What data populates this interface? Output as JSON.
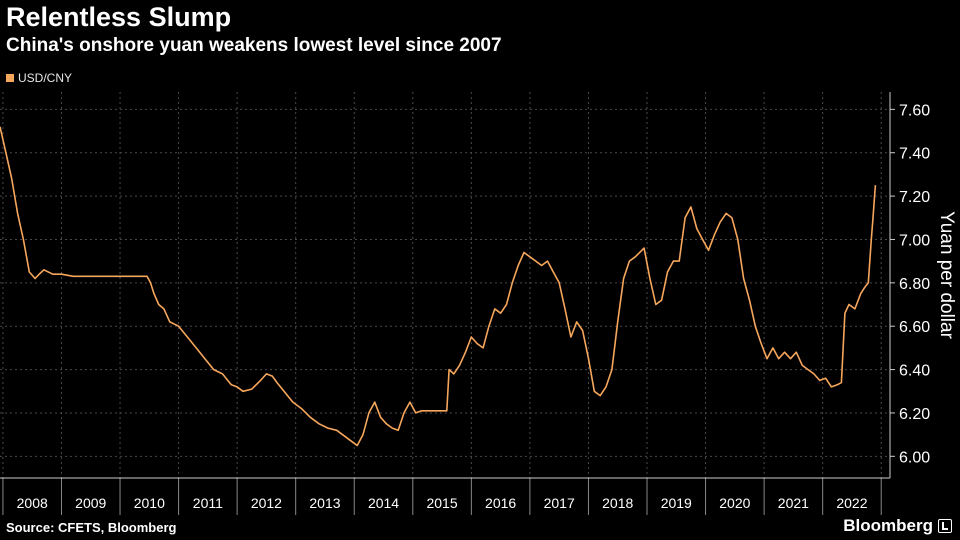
{
  "header": {
    "title": "Relentless Slump",
    "subtitle": "China's onshore yuan weakens lowest level since 2007"
  },
  "footer": {
    "source": "Source: CFETS, Bloomberg",
    "brand": "Bloomberg"
  },
  "colors": {
    "background": "#000000",
    "series": "#f7a75c",
    "grid": "#4a4a4a",
    "axis": "#cccccc"
  },
  "chart_data": {
    "type": "line",
    "title": "Relentless Slump",
    "subtitle": "China's onshore yuan weakens lowest level since 2007",
    "xlabel": "",
    "ylabel": "Yuan per dollar",
    "xlim": [
      2007.95,
      2023.15
    ],
    "ylim": [
      5.9,
      7.68
    ],
    "y_ticks": [
      "7.60",
      "7.40",
      "7.20",
      "7.00",
      "6.80",
      "6.60",
      "6.40",
      "6.20",
      "6.00"
    ],
    "x_ticks": [
      "2008",
      "2009",
      "2010",
      "2011",
      "2012",
      "2013",
      "2014",
      "2015",
      "2016",
      "2017",
      "2018",
      "2019",
      "2020",
      "2021",
      "2022"
    ],
    "y_axis_side": "right",
    "grid": true,
    "legend": "top-left",
    "series": [
      {
        "name": "USD/CNY",
        "x": [
          2007.95,
          2008.05,
          2008.15,
          2008.25,
          2008.35,
          2008.45,
          2008.55,
          2008.62,
          2008.7,
          2008.85,
          2009.0,
          2009.2,
          2009.4,
          2009.6,
          2009.8,
          2010.0,
          2010.2,
          2010.4,
          2010.46,
          2010.52,
          2010.58,
          2010.66,
          2010.75,
          2010.85,
          2011.0,
          2011.15,
          2011.3,
          2011.45,
          2011.6,
          2011.75,
          2011.9,
          2012.0,
          2012.1,
          2012.25,
          2012.4,
          2012.5,
          2012.6,
          2012.68,
          2012.8,
          2012.95,
          2013.1,
          2013.25,
          2013.4,
          2013.55,
          2013.7,
          2013.85,
          2014.0,
          2014.05,
          2014.15,
          2014.25,
          2014.35,
          2014.45,
          2014.55,
          2014.65,
          2014.75,
          2014.85,
          2014.95,
          2015.05,
          2015.15,
          2015.3,
          2015.45,
          2015.58,
          2015.62,
          2015.7,
          2015.8,
          2015.9,
          2016.0,
          2016.1,
          2016.2,
          2016.3,
          2016.4,
          2016.5,
          2016.6,
          2016.7,
          2016.8,
          2016.9,
          2017.0,
          2017.1,
          2017.2,
          2017.3,
          2017.4,
          2017.5,
          2017.6,
          2017.7,
          2017.8,
          2017.9,
          2018.0,
          2018.1,
          2018.2,
          2018.3,
          2018.4,
          2018.5,
          2018.6,
          2018.7,
          2018.8,
          2018.95,
          2019.05,
          2019.15,
          2019.25,
          2019.35,
          2019.45,
          2019.55,
          2019.65,
          2019.75,
          2019.85,
          2019.95,
          2020.05,
          2020.15,
          2020.25,
          2020.35,
          2020.45,
          2020.55,
          2020.65,
          2020.75,
          2020.85,
          2020.95,
          2021.05,
          2021.15,
          2021.25,
          2021.35,
          2021.45,
          2021.55,
          2021.65,
          2021.75,
          2021.85,
          2021.95,
          2022.05,
          2022.15,
          2022.25,
          2022.32,
          2022.38,
          2022.45,
          2022.55,
          2022.65,
          2022.72,
          2022.78,
          2022.83,
          2022.86,
          2022.9
        ],
        "values": [
          7.52,
          7.4,
          7.28,
          7.12,
          7.0,
          6.85,
          6.82,
          6.84,
          6.86,
          6.84,
          6.84,
          6.83,
          6.83,
          6.83,
          6.83,
          6.83,
          6.83,
          6.83,
          6.83,
          6.8,
          6.75,
          6.7,
          6.68,
          6.62,
          6.6,
          6.55,
          6.5,
          6.45,
          6.4,
          6.38,
          6.33,
          6.32,
          6.3,
          6.31,
          6.35,
          6.38,
          6.37,
          6.34,
          6.3,
          6.25,
          6.22,
          6.18,
          6.15,
          6.13,
          6.12,
          6.09,
          6.06,
          6.05,
          6.1,
          6.2,
          6.25,
          6.18,
          6.15,
          6.13,
          6.12,
          6.2,
          6.25,
          6.2,
          6.21,
          6.21,
          6.21,
          6.21,
          6.4,
          6.38,
          6.42,
          6.48,
          6.55,
          6.52,
          6.5,
          6.6,
          6.68,
          6.66,
          6.7,
          6.8,
          6.88,
          6.94,
          6.92,
          6.9,
          6.88,
          6.9,
          6.85,
          6.8,
          6.68,
          6.55,
          6.62,
          6.58,
          6.45,
          6.3,
          6.28,
          6.32,
          6.4,
          6.62,
          6.82,
          6.9,
          6.92,
          6.96,
          6.82,
          6.7,
          6.72,
          6.85,
          6.9,
          6.9,
          7.1,
          7.15,
          7.05,
          7.0,
          6.95,
          7.02,
          7.08,
          7.12,
          7.1,
          7.0,
          6.82,
          6.72,
          6.6,
          6.52,
          6.45,
          6.5,
          6.45,
          6.48,
          6.45,
          6.48,
          6.42,
          6.4,
          6.38,
          6.35,
          6.36,
          6.32,
          6.33,
          6.34,
          6.66,
          6.7,
          6.68,
          6.75,
          6.78,
          6.8,
          7.0,
          7.1,
          7.25
        ]
      }
    ]
  }
}
